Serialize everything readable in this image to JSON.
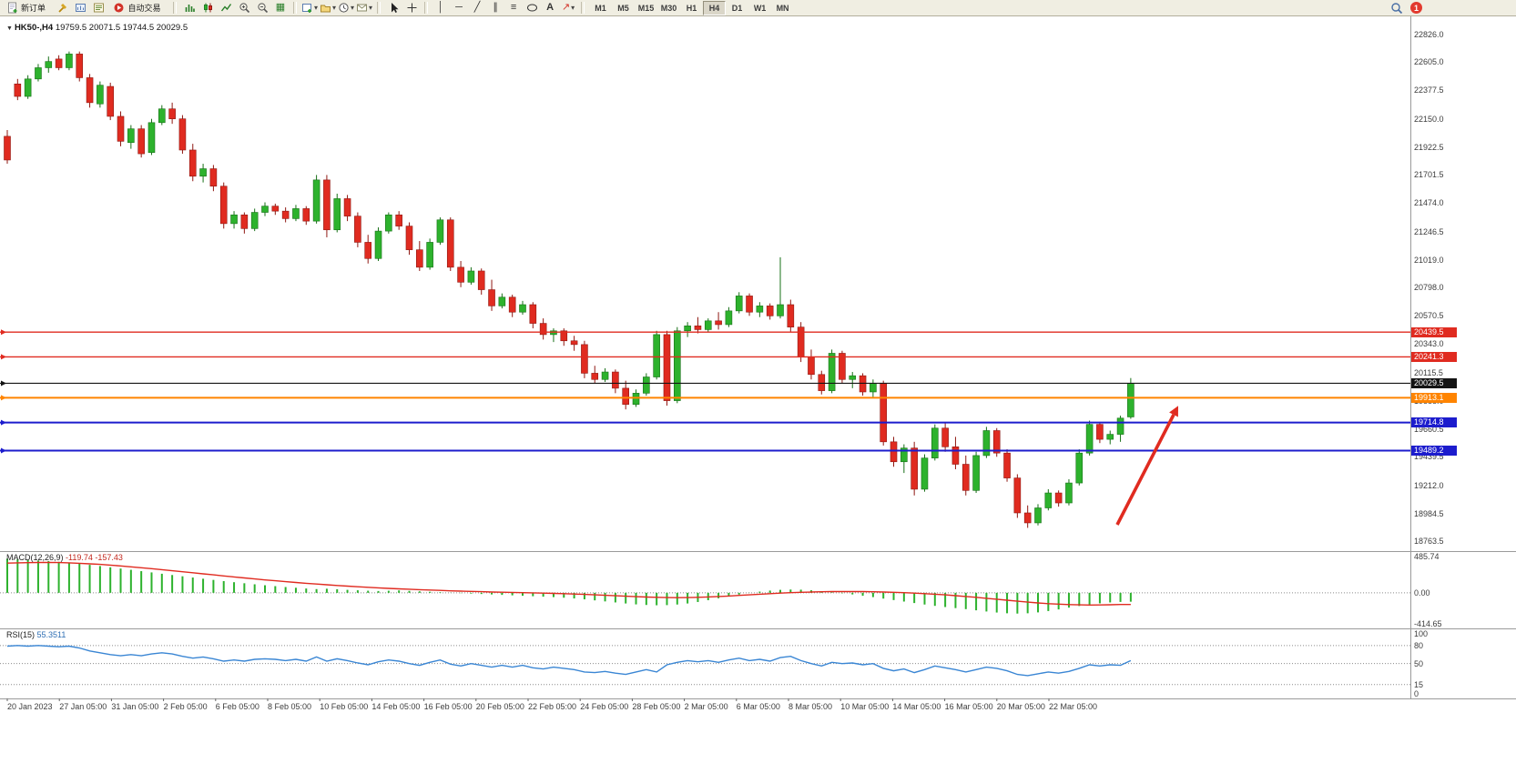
{
  "toolbar": {
    "new_order_label": "新订单",
    "auto_trading_label": "自动交易",
    "timeframes": [
      "M1",
      "M5",
      "M15",
      "M30",
      "H1",
      "H4",
      "D1",
      "W1",
      "MN"
    ],
    "active_timeframe": "H4",
    "notification_count": "1",
    "icons": [
      "new-order-icon",
      "hammer-icon",
      "chart-profile-icon",
      "market-watch-icon",
      "auto-trading-icon",
      "bar-chart-icon",
      "candlestick-chart-icon",
      "line-chart-icon",
      "zoom-in-icon",
      "zoom-out-icon",
      "tile-windows-icon",
      "new-chart-icon",
      "profiles-icon",
      "alerts-icon",
      "mailbox-icon",
      "cursor-icon",
      "crosshair-icon",
      "vertical-line-icon",
      "horizontal-line-icon",
      "trendline-icon",
      "channel-icon",
      "fibonacci-icon",
      "shapes-icon",
      "text-icon",
      "arrows-icon",
      "search-icon",
      "notification-badge"
    ]
  },
  "chart_data": {
    "type": "candlestick",
    "symbol": "HK50-",
    "period": "H4",
    "title": "HK50-,H4",
    "ohlc_text": "19759.5 20071.5 19744.5 20029.5",
    "current": {
      "open": 19759.5,
      "high": 20071.5,
      "low": 19744.5,
      "close": 20029.5
    },
    "price_axis": {
      "min": 18691,
      "max": 22979
    },
    "price_axis_ticks": [
      "22826.0",
      "22605.0",
      "22377.5",
      "22150.0",
      "21922.5",
      "21701.5",
      "21474.0",
      "21246.5",
      "21019.0",
      "20798.0",
      "20570.5",
      "20343.0",
      "20115.5",
      "19888.0",
      "19660.5",
      "19439.5",
      "19212.0",
      "18984.5",
      "18763.5"
    ],
    "levels": [
      {
        "name": "resistance-line-1",
        "price": 20439.5,
        "label": "20439.5",
        "color": "#e02b20",
        "width": 1.4
      },
      {
        "name": "resistance-line-2",
        "price": 20241.3,
        "label": "20241.3",
        "color": "#e02b20",
        "width": 1.4
      },
      {
        "name": "current-price-line",
        "price": 20029.5,
        "label": "20029.5",
        "color": "#141414",
        "width": 1.1
      },
      {
        "name": "support-line-orange",
        "price": 19913.1,
        "label": "19913.1",
        "color": "#ff8400",
        "width": 2
      },
      {
        "name": "support-line-blue-1",
        "price": 19714.8,
        "label": "19714.8",
        "color": "#1c1ccd",
        "width": 2
      },
      {
        "name": "support-line-blue-2",
        "price": 19489.2,
        "label": "19489.2",
        "color": "#1c1ccd",
        "width": 2
      }
    ],
    "annotation_arrow": {
      "color": "#e02b20",
      "direction": "up-right"
    },
    "time_labels": [
      "20 Jan 2023",
      "27 Jan 05:00",
      "31 Jan 05:00",
      "2 Feb 05:00",
      "6 Feb 05:00",
      "8 Feb 05:00",
      "10 Feb 05:00",
      "14 Feb 05:00",
      "16 Feb 05:00",
      "20 Feb 05:00",
      "22 Feb 05:00",
      "24 Feb 05:00",
      "28 Feb 05:00",
      "2 Mar 05:00",
      "6 Mar 05:00",
      "8 Mar 05:00",
      "10 Mar 05:00",
      "14 Mar 05:00",
      "16 Mar 05:00",
      "20 Mar 05:00",
      "22 Mar 05:00"
    ],
    "candles": [
      [
        22010,
        22060,
        21790,
        21820
      ],
      [
        22430,
        22470,
        22300,
        22330
      ],
      [
        22330,
        22500,
        22310,
        22470
      ],
      [
        22470,
        22590,
        22450,
        22560
      ],
      [
        22560,
        22650,
        22520,
        22610
      ],
      [
        22630,
        22660,
        22540,
        22560
      ],
      [
        22560,
        22690,
        22540,
        22670
      ],
      [
        22670,
        22690,
        22450,
        22480
      ],
      [
        22480,
        22510,
        22240,
        22280
      ],
      [
        22270,
        22450,
        22240,
        22420
      ],
      [
        22410,
        22440,
        22140,
        22170
      ],
      [
        22170,
        22210,
        21930,
        21970
      ],
      [
        21960,
        22100,
        21910,
        22070
      ],
      [
        22070,
        22100,
        21840,
        21870
      ],
      [
        21880,
        22150,
        21860,
        22120
      ],
      [
        22120,
        22260,
        22100,
        22230
      ],
      [
        22230,
        22280,
        22110,
        22150
      ],
      [
        22150,
        22180,
        21870,
        21900
      ],
      [
        21900,
        21950,
        21650,
        21690
      ],
      [
        21690,
        21790,
        21640,
        21750
      ],
      [
        21750,
        21780,
        21570,
        21610
      ],
      [
        21610,
        21640,
        21270,
        21310
      ],
      [
        21310,
        21410,
        21270,
        21380
      ],
      [
        21380,
        21400,
        21230,
        21270
      ],
      [
        21270,
        21430,
        21250,
        21400
      ],
      [
        21400,
        21480,
        21370,
        21450
      ],
      [
        21450,
        21470,
        21380,
        21410
      ],
      [
        21410,
        21440,
        21320,
        21350
      ],
      [
        21350,
        21460,
        21330,
        21430
      ],
      [
        21430,
        21450,
        21300,
        21330
      ],
      [
        21330,
        21700,
        21310,
        21660
      ],
      [
        21660,
        21700,
        21200,
        21260
      ],
      [
        21260,
        21550,
        21240,
        21510
      ],
      [
        21510,
        21540,
        21330,
        21370
      ],
      [
        21370,
        21400,
        21120,
        21160
      ],
      [
        21160,
        21220,
        20990,
        21030
      ],
      [
        21030,
        21280,
        21010,
        21250
      ],
      [
        21250,
        21400,
        21230,
        21380
      ],
      [
        21380,
        21410,
        21260,
        21290
      ],
      [
        21290,
        21320,
        21060,
        21100
      ],
      [
        21100,
        21170,
        20930,
        20960
      ],
      [
        20960,
        21190,
        20940,
        21160
      ],
      [
        21160,
        21360,
        21140,
        21340
      ],
      [
        21340,
        21360,
        20930,
        20960
      ],
      [
        20960,
        21010,
        20800,
        20840
      ],
      [
        20840,
        20960,
        20820,
        20930
      ],
      [
        20930,
        20950,
        20740,
        20780
      ],
      [
        20780,
        20860,
        20610,
        20650
      ],
      [
        20650,
        20750,
        20630,
        20720
      ],
      [
        20720,
        20740,
        20560,
        20600
      ],
      [
        20600,
        20690,
        20580,
        20660
      ],
      [
        20660,
        20680,
        20470,
        20510
      ],
      [
        20510,
        20550,
        20380,
        20420
      ],
      [
        20420,
        20470,
        20360,
        20450
      ],
      [
        20450,
        20470,
        20330,
        20370
      ],
      [
        20370,
        20410,
        20290,
        20340
      ],
      [
        20340,
        20370,
        20070,
        20110
      ],
      [
        20110,
        20170,
        20030,
        20060
      ],
      [
        20060,
        20150,
        20040,
        20120
      ],
      [
        20120,
        20140,
        19950,
        19990
      ],
      [
        19990,
        20050,
        19820,
        19860
      ],
      [
        19860,
        19980,
        19840,
        19950
      ],
      [
        19950,
        20110,
        19930,
        20080
      ],
      [
        20080,
        20450,
        20060,
        20420
      ],
      [
        20420,
        20450,
        19850,
        19890
      ],
      [
        19890,
        20480,
        19870,
        20450
      ],
      [
        20450,
        20520,
        20400,
        20490
      ],
      [
        20490,
        20560,
        20430,
        20460
      ],
      [
        20460,
        20550,
        20440,
        20530
      ],
      [
        20530,
        20600,
        20460,
        20500
      ],
      [
        20500,
        20640,
        20480,
        20610
      ],
      [
        20610,
        20760,
        20590,
        20730
      ],
      [
        20730,
        20750,
        20570,
        20600
      ],
      [
        20600,
        20680,
        20560,
        20650
      ],
      [
        20650,
        20670,
        20540,
        20570
      ],
      [
        20570,
        21040,
        20550,
        20660
      ],
      [
        20660,
        20700,
        20440,
        20480
      ],
      [
        20480,
        20520,
        20200,
        20240
      ],
      [
        20240,
        20300,
        20060,
        20100
      ],
      [
        20100,
        20130,
        19940,
        19970
      ],
      [
        19970,
        20300,
        19950,
        20270
      ],
      [
        20270,
        20290,
        20030,
        20060
      ],
      [
        20060,
        20120,
        19990,
        20090
      ],
      [
        20090,
        20110,
        19930,
        19960
      ],
      [
        19960,
        20060,
        19910,
        20030
      ],
      [
        20030,
        20050,
        19530,
        19560
      ],
      [
        19560,
        19600,
        19360,
        19400
      ],
      [
        19400,
        19540,
        19310,
        19510
      ],
      [
        19510,
        19560,
        19130,
        19180
      ],
      [
        19180,
        19460,
        19160,
        19430
      ],
      [
        19430,
        19700,
        19410,
        19670
      ],
      [
        19670,
        19710,
        19480,
        19520
      ],
      [
        19520,
        19600,
        19340,
        19380
      ],
      [
        19380,
        19450,
        19130,
        19170
      ],
      [
        19170,
        19480,
        19150,
        19450
      ],
      [
        19450,
        19680,
        19430,
        19650
      ],
      [
        19650,
        19670,
        19440,
        19470
      ],
      [
        19470,
        19500,
        19240,
        19270
      ],
      [
        19270,
        19300,
        18950,
        18990
      ],
      [
        18990,
        19050,
        18870,
        18910
      ],
      [
        18910,
        19060,
        18890,
        19030
      ],
      [
        19030,
        19180,
        19010,
        19150
      ],
      [
        19150,
        19170,
        19040,
        19070
      ],
      [
        19070,
        19260,
        19050,
        19230
      ],
      [
        19230,
        19500,
        19210,
        19470
      ],
      [
        19470,
        19730,
        19450,
        19700
      ],
      [
        19700,
        19720,
        19550,
        19580
      ],
      [
        19580,
        19650,
        19540,
        19620
      ],
      [
        19620,
        19770,
        19560,
        19750
      ],
      [
        19759.5,
        20071.5,
        19744.5,
        20029.5
      ]
    ],
    "macd": {
      "label": "MACD(12,26,9)",
      "values": "-119.74 -157.43",
      "ticks": [
        "485.74",
        "0.00",
        "-414.65"
      ],
      "histogram": [
        460,
        452,
        444,
        436,
        428,
        418,
        406,
        392,
        377,
        361,
        344,
        327,
        310,
        292,
        275,
        257,
        240,
        223,
        206,
        190,
        174,
        158,
        143,
        129,
        115,
        102,
        90,
        78,
        68,
        58,
        50,
        55,
        48,
        40,
        34,
        28,
        24,
        28,
        32,
        26,
        20,
        14,
        8,
        2,
        -4,
        -10,
        -16,
        -22,
        -28,
        -34,
        -40,
        -46,
        -52,
        -58,
        -66,
        -76,
        -88,
        -102,
        -116,
        -130,
        -144,
        -156,
        -164,
        -168,
        -166,
        -158,
        -144,
        -124,
        -100,
        -74,
        -48,
        -24,
        -2,
        16,
        30,
        40,
        44,
        42,
        34,
        22,
        8,
        -6,
        -22,
        -40,
        -58,
        -78,
        -98,
        -118,
        -138,
        -158,
        -176,
        -192,
        -206,
        -220,
        -236,
        -252,
        -266,
        -276,
        -280,
        -276,
        -264,
        -246,
        -224,
        -200,
        -178,
        -158,
        -142,
        -130,
        -123,
        -120
      ],
      "signal": [
        400,
        404,
        407,
        409,
        410,
        408,
        404,
        398,
        391,
        383,
        373,
        362,
        350,
        338,
        325,
        312,
        298,
        284,
        270,
        256,
        242,
        228,
        214,
        200,
        187,
        174,
        162,
        150,
        139,
        128,
        118,
        108,
        99,
        90,
        82,
        74,
        67,
        60,
        54,
        48,
        42,
        37,
        32,
        27,
        23,
        19,
        15,
        11,
        8,
        5,
        2,
        -1,
        -4,
        -8,
        -12,
        -17,
        -22,
        -28,
        -34,
        -40,
        -46,
        -52,
        -57,
        -61,
        -64,
        -65,
        -64,
        -61,
        -56,
        -50,
        -43,
        -35,
        -27,
        -19,
        -11,
        -4,
        2,
        7,
        11,
        14,
        16,
        17,
        17,
        16,
        14,
        11,
        7,
        2,
        -4,
        -11,
        -19,
        -28,
        -38,
        -49,
        -61,
        -74,
        -87,
        -100,
        -113,
        -126,
        -137,
        -146,
        -153,
        -159,
        -163,
        -165,
        -164,
        -161,
        -158,
        -157
      ]
    },
    "rsi": {
      "label": "RSI(15)",
      "value": "55.3511",
      "ticks": [
        "100",
        "80",
        "50",
        "15",
        "0"
      ],
      "levels": [
        80,
        50,
        15
      ],
      "series": [
        79,
        80,
        79,
        80,
        79,
        78,
        79,
        76,
        71,
        68,
        65,
        63,
        65,
        63,
        66,
        68,
        66,
        62,
        59,
        61,
        58,
        54,
        56,
        54,
        57,
        58,
        57,
        55,
        57,
        54,
        61,
        54,
        58,
        55,
        51,
        48,
        53,
        56,
        54,
        50,
        47,
        52,
        56,
        49,
        46,
        50,
        47,
        44,
        47,
        44,
        47,
        43,
        41,
        44,
        42,
        40,
        36,
        35,
        37,
        34,
        32,
        36,
        40,
        36,
        48,
        52,
        55,
        53,
        55,
        52,
        56,
        59,
        55,
        57,
        54,
        60,
        62,
        55,
        50,
        46,
        52,
        50,
        51,
        48,
        50,
        42,
        38,
        41,
        35,
        40,
        46,
        43,
        40,
        36,
        40,
        44,
        42,
        38,
        32,
        30,
        33,
        36,
        34,
        37,
        42,
        48,
        46,
        48,
        47,
        55
      ]
    }
  }
}
